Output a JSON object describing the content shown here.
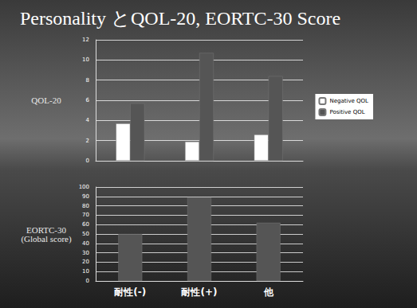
{
  "title": "Personality とQOL-20, EORTC-30 Score",
  "chart_data": [
    {
      "type": "bar",
      "y_label": "QOL-20",
      "categories": [
        "耐性(-)",
        "耐性(+)",
        "他"
      ],
      "series": [
        {
          "name": "Negative QOL",
          "color": "#ffffff",
          "values": [
            3.7,
            1.9,
            2.6
          ]
        },
        {
          "name": "Positive QOL",
          "color": "#555555",
          "values": [
            5.7,
            10.7,
            8.4
          ]
        }
      ],
      "ylim": [
        0,
        12
      ],
      "yticks": [
        0,
        2,
        4,
        6,
        8,
        10,
        12
      ],
      "grid": true,
      "legend": "right",
      "tick_labels": "y"
    },
    {
      "type": "bar",
      "y_label": "EORTC-30\n(Global score)",
      "categories": [
        "耐性(-)",
        "耐性(+)",
        "他"
      ],
      "values": [
        50,
        89,
        62
      ],
      "color": "#555555",
      "ylim": [
        0,
        100
      ],
      "yticks": [
        0,
        10,
        20,
        30,
        40,
        50,
        60,
        70,
        80,
        90,
        100
      ],
      "grid": true
    }
  ]
}
